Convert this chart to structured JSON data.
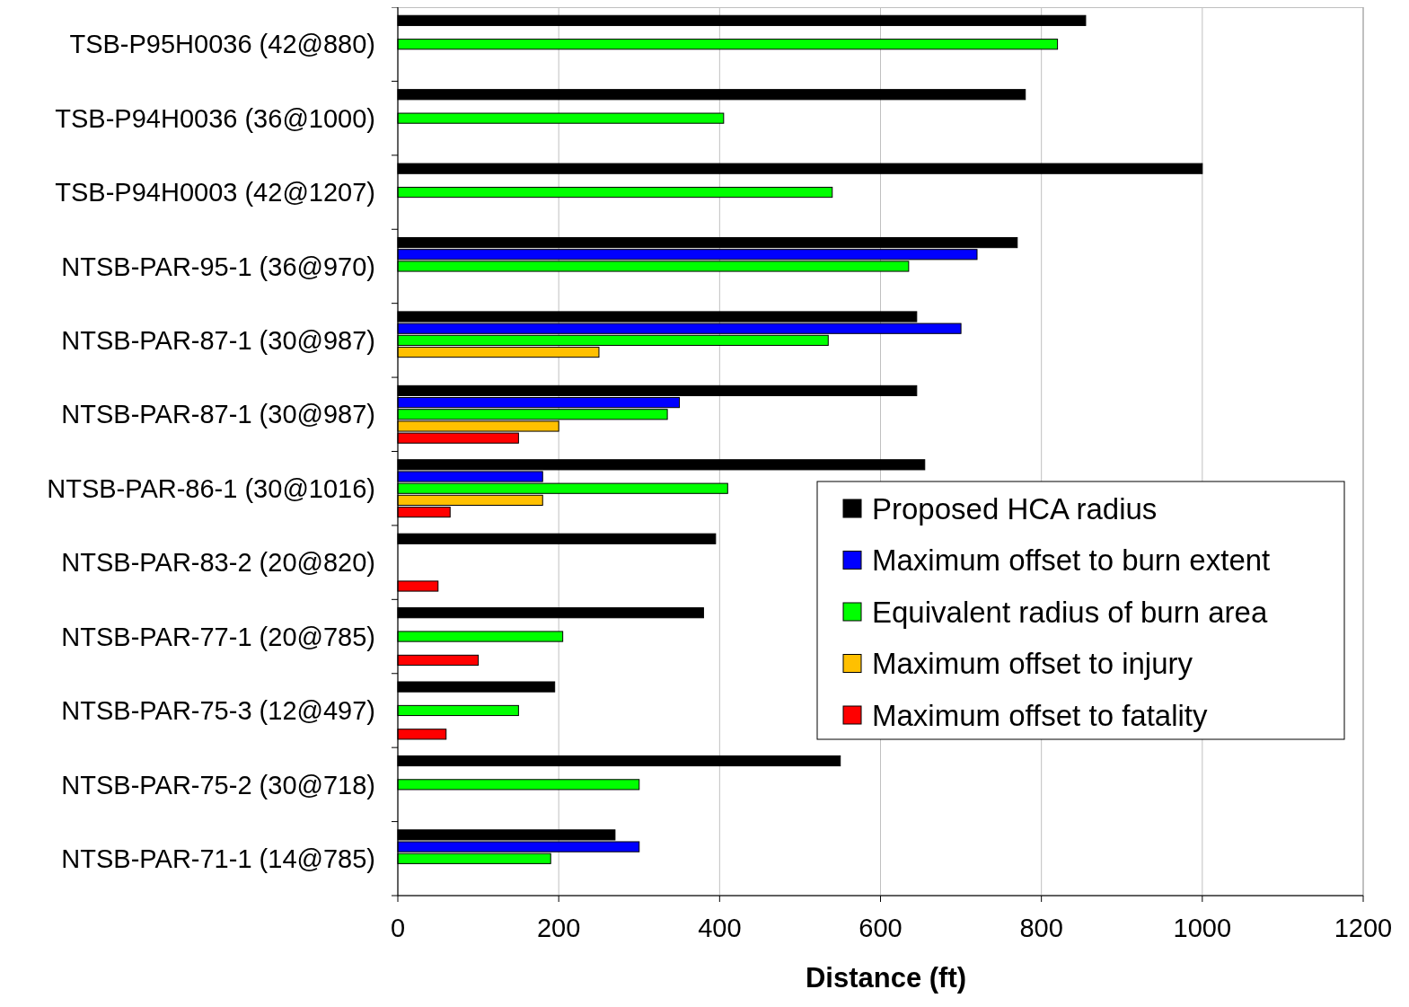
{
  "chart_data": {
    "type": "bar",
    "orientation": "horizontal",
    "xlabel": "Distance (ft)",
    "categories": [
      "TSB-P95H0036 (42@880)",
      "TSB-P94H0036 (36@1000)",
      "TSB-P94H0003 (42@1207)",
      "NTSB-PAR-95-1 (36@970)",
      "NTSB-PAR-87-1 (30@987)",
      "NTSB-PAR-87-1 (30@987)",
      "NTSB-PAR-86-1 (30@1016)",
      "NTSB-PAR-83-2 (20@820)",
      "NTSB-PAR-77-1 (20@785)",
      "NTSB-PAR-75-3 (12@497)",
      "NTSB-PAR-75-2 (30@718)",
      "NTSB-PAR-71-1 (14@785)"
    ],
    "series": [
      {
        "name": "Proposed HCA radius",
        "color": "#000000",
        "values": [
          855,
          780,
          1000,
          770,
          645,
          645,
          655,
          395,
          380,
          195,
          550,
          270
        ]
      },
      {
        "name": "Maximum offset to burn extent",
        "color": "#0000ff",
        "values": [
          null,
          null,
          null,
          720,
          700,
          350,
          180,
          null,
          null,
          null,
          null,
          300
        ]
      },
      {
        "name": "Equivalent radius of burn area",
        "color": "#00ff00",
        "values": [
          820,
          405,
          540,
          635,
          535,
          335,
          410,
          null,
          205,
          150,
          300,
          190
        ]
      },
      {
        "name": "Maximum offset to injury",
        "color": "#ffc000",
        "values": [
          null,
          null,
          null,
          null,
          250,
          200,
          180,
          null,
          null,
          null,
          null,
          null
        ]
      },
      {
        "name": "Maximum offset to fatality",
        "color": "#ff0000",
        "values": [
          null,
          null,
          null,
          null,
          null,
          150,
          65,
          50,
          100,
          60,
          null,
          null
        ]
      }
    ],
    "xlim": [
      0,
      1200
    ],
    "xticks": [
      0,
      200,
      400,
      600,
      800,
      1000,
      1200
    ],
    "grid": "x",
    "legend": "right"
  }
}
